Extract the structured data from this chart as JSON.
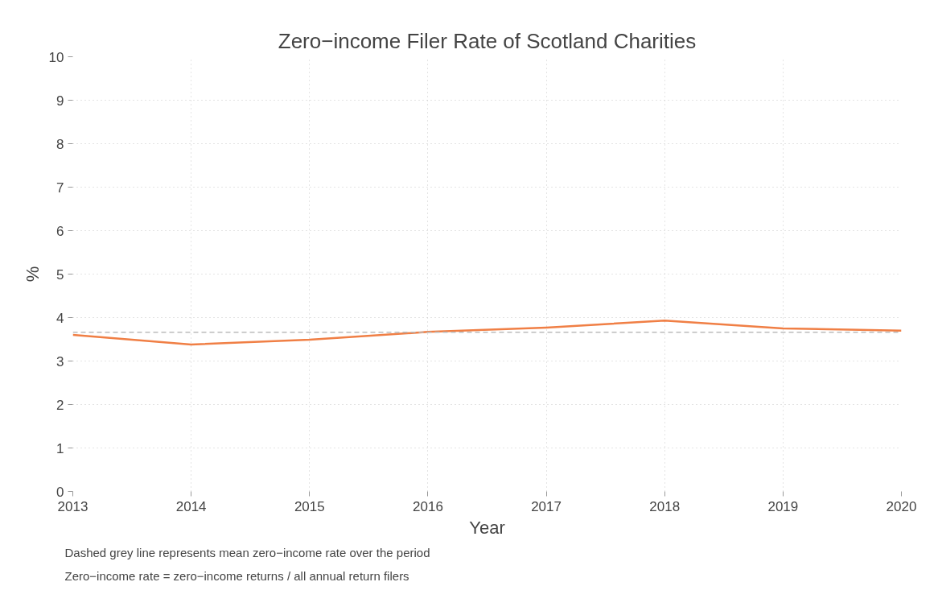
{
  "chart_data": {
    "type": "line",
    "title": "Zero−income Filer Rate of Scotland Charities",
    "xlabel": "Year",
    "ylabel": "%",
    "x": [
      2013,
      2014,
      2015,
      2016,
      2017,
      2018,
      2019,
      2020
    ],
    "series": [
      {
        "color": "#f07f45",
        "values": [
          3.6,
          3.38,
          3.49,
          3.67,
          3.77,
          3.93,
          3.75,
          3.7
        ]
      }
    ],
    "xlim": [
      2013,
      2020
    ],
    "xticks": [
      2013,
      2014,
      2015,
      2016,
      2017,
      2018,
      2019,
      2020
    ],
    "ylim": [
      0,
      10
    ],
    "yticks": [
      0,
      1,
      2,
      3,
      4,
      5,
      6,
      7,
      8,
      9,
      10
    ],
    "grid": true,
    "marker": "none",
    "line_style": "solid",
    "ref_lines": [
      {
        "axis": "y",
        "value": 3.66,
        "label": null,
        "color": "#bbbbbb",
        "line_style": "dashed"
      }
    ],
    "annotations": [
      "Dashed grey line represents mean zero−income rate over the period",
      "Zero−income rate = zero−income returns / all annual return filers"
    ]
  }
}
